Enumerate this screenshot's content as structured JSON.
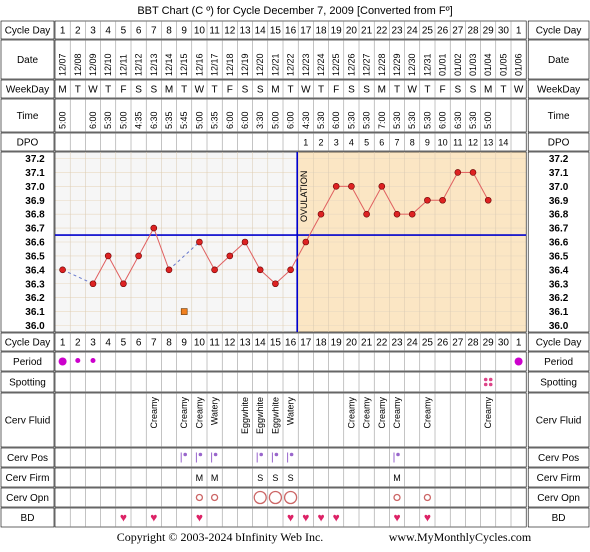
{
  "title": "BBT Chart (C º) for Cycle December 7, 2009  [Converted from Fº]",
  "footer": {
    "copyright": "Copyright © 2003-2024 bInfinity Web Inc.",
    "site": "www.MyMonthlyCycles.com"
  },
  "row_labels": {
    "cycle_day": "Cycle Day",
    "date": "Date",
    "weekday": "WeekDay",
    "time": "Time",
    "dpo": "DPO",
    "period": "Period",
    "spotting": "Spotting",
    "cerv_fluid": "Cerv Fluid",
    "cerv_pos": "Cerv Pos",
    "cerv_firm": "Cerv Firm",
    "cerv_opn": "Cerv Opn",
    "bd": "BD"
  },
  "ovulation_label": "OVULATION",
  "colors": {
    "pre_ovulation_bg": "#f6f6f6",
    "post_ovulation_bg": "#fbe6c4",
    "temp_line": "#e06060",
    "temp_point": "#dd2222",
    "coverline": "#0000cc",
    "period_dot": "#cc00cc",
    "heart": "#dd2266",
    "cerv_marks": "#9966cc"
  },
  "chart_data": {
    "type": "line",
    "title": "BBT Chart (C º) for Cycle December 7, 2009  [Converted from Fº]",
    "xlabel": "Cycle Day",
    "ylabel": "",
    "ylim": [
      36.0,
      37.2
    ],
    "y_ticks": [
      "37.2",
      "37.1",
      "37.0",
      "36.9",
      "36.8",
      "36.7",
      "36.6",
      "36.5",
      "36.4",
      "36.3",
      "36.2",
      "36.1",
      "36.0"
    ],
    "cycle_days": [
      1,
      2,
      3,
      4,
      5,
      6,
      7,
      8,
      9,
      10,
      11,
      12,
      13,
      14,
      15,
      16,
      17,
      18,
      19,
      20,
      21,
      22,
      23,
      24,
      25,
      26,
      27,
      28,
      29,
      30,
      1
    ],
    "dates": [
      "12/07",
      "12/08",
      "12/09",
      "12/10",
      "12/11",
      "12/12",
      "12/13",
      "12/14",
      "12/15",
      "12/16",
      "12/17",
      "12/18",
      "12/19",
      "12/20",
      "12/21",
      "12/22",
      "12/23",
      "12/24",
      "12/25",
      "12/26",
      "12/27",
      "12/28",
      "12/29",
      "12/30",
      "12/31",
      "01/01",
      "01/02",
      "01/03",
      "01/04",
      "01/05",
      "01/06"
    ],
    "weekdays": [
      "M",
      "T",
      "W",
      "T",
      "F",
      "S",
      "S",
      "M",
      "T",
      "W",
      "T",
      "F",
      "S",
      "S",
      "M",
      "T",
      "W",
      "T",
      "F",
      "S",
      "S",
      "M",
      "T",
      "W",
      "T",
      "F",
      "S",
      "S",
      "M",
      "T",
      "W"
    ],
    "times": [
      "5:00",
      "",
      "6:00",
      "5:30",
      "5:00",
      "4:35",
      "6:30",
      "5:35",
      "5:45",
      "5:00",
      "5:35",
      "6:00",
      "6:00",
      "3:30",
      "5:00",
      "6:00",
      "4:30",
      "5:30",
      "6:00",
      "5:30",
      "5:30",
      "7:00",
      "5:30",
      "5:30",
      "5:30",
      "6:00",
      "6:30",
      "5:30",
      "5:00",
      "",
      ""
    ],
    "dpo": [
      "",
      "",
      "",
      "",
      "",
      "",
      "",
      "",
      "",
      "",
      "",
      "",
      "",
      "",
      "",
      "",
      "1",
      "2",
      "3",
      "4",
      "5",
      "6",
      "7",
      "8",
      "9",
      "10",
      "11",
      "12",
      "13",
      "14",
      ""
    ],
    "temps": [
      36.4,
      null,
      36.3,
      36.5,
      36.3,
      36.5,
      36.7,
      36.4,
      null,
      36.6,
      36.4,
      36.5,
      36.6,
      36.4,
      36.3,
      36.4,
      36.6,
      36.8,
      37.0,
      37.0,
      36.8,
      37.0,
      36.8,
      36.8,
      36.9,
      36.9,
      37.1,
      37.1,
      36.9,
      null,
      null
    ],
    "excluded_temps": [
      {
        "day_index": 8,
        "value": 36.1
      }
    ],
    "coverline": 36.65,
    "ovulation_day_index": 15,
    "period": [
      "big",
      "small",
      "small",
      "",
      "",
      "",
      "",
      "",
      "",
      "",
      "",
      "",
      "",
      "",
      "",
      "",
      "",
      "",
      "",
      "",
      "",
      "",
      "",
      "",
      "",
      "",
      "",
      "",
      "",
      "",
      "big"
    ],
    "spotting": [
      "",
      "",
      "",
      "",
      "",
      "",
      "",
      "",
      "",
      "",
      "",
      "",
      "",
      "",
      "",
      "",
      "",
      "",
      "",
      "",
      "",
      "",
      "",
      "",
      "",
      "",
      "",
      "",
      "spot",
      "",
      ""
    ],
    "cerv_fluid": [
      "",
      "",
      "",
      "",
      "",
      "",
      "Creamy",
      "",
      "Creamy",
      "Creamy",
      "Watery",
      "",
      "Eggwhite",
      "Eggwhite",
      "Eggwhite",
      "Watery",
      "",
      "",
      "",
      "Creamy",
      "Creamy",
      "Creamy",
      "Creamy",
      "",
      "Creamy",
      "",
      "",
      "",
      "Creamy",
      "",
      ""
    ],
    "cerv_pos": [
      "",
      "",
      "",
      "",
      "",
      "",
      "",
      "",
      "high",
      "high",
      "high",
      "",
      "",
      "high",
      "high",
      "high",
      "",
      "",
      "",
      "",
      "",
      "",
      "high",
      "",
      "",
      "",
      "",
      "",
      "",
      "",
      ""
    ],
    "cerv_firm": [
      "",
      "",
      "",
      "",
      "",
      "",
      "",
      "",
      "",
      "M",
      "M",
      "",
      "",
      "S",
      "S",
      "S",
      "",
      "",
      "",
      "",
      "",
      "",
      "M",
      "",
      "",
      "",
      "",
      "",
      "",
      "",
      ""
    ],
    "cerv_opn": [
      "",
      "",
      "",
      "",
      "",
      "",
      "",
      "",
      "",
      "o",
      "o",
      "",
      "",
      "O",
      "O",
      "O",
      "",
      "",
      "",
      "",
      "",
      "",
      "o",
      "",
      "o",
      "",
      "",
      "",
      "",
      "",
      ""
    ],
    "bd": [
      "",
      "",
      "",
      "",
      "heart",
      "",
      "heart",
      "",
      "",
      "heart",
      "",
      "",
      "",
      "",
      "",
      "heart",
      "heart",
      "heart",
      "heart",
      "",
      "",
      "",
      "heart",
      "",
      "heart",
      "",
      "",
      "",
      "",
      "",
      ""
    ]
  }
}
